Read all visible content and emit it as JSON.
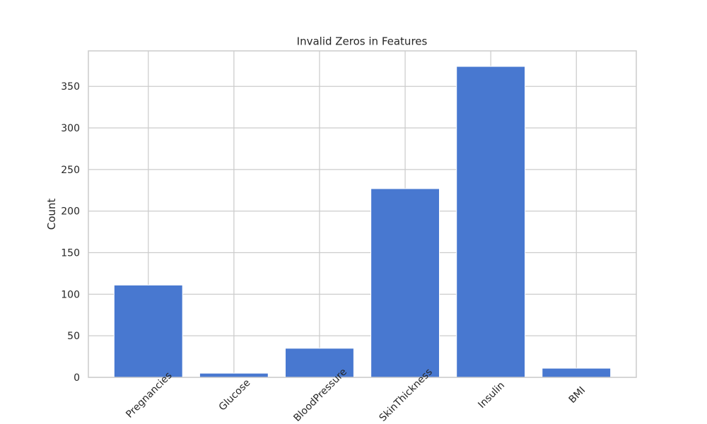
{
  "chart_data": {
    "type": "bar",
    "title": "Invalid Zeros in Features",
    "xlabel": "",
    "ylabel": "Count",
    "categories": [
      "Pregnancies",
      "Glucose",
      "BloodPressure",
      "SkinThickness",
      "Insulin",
      "BMI"
    ],
    "values": [
      111,
      5,
      35,
      227,
      374,
      11
    ],
    "ylim": [
      0,
      392.7
    ],
    "yticks": [
      0,
      50,
      100,
      150,
      200,
      250,
      300,
      350
    ],
    "grid": true,
    "bar_color": "#4878d0",
    "grid_color": "#cccccc",
    "text_color": "#262626"
  }
}
